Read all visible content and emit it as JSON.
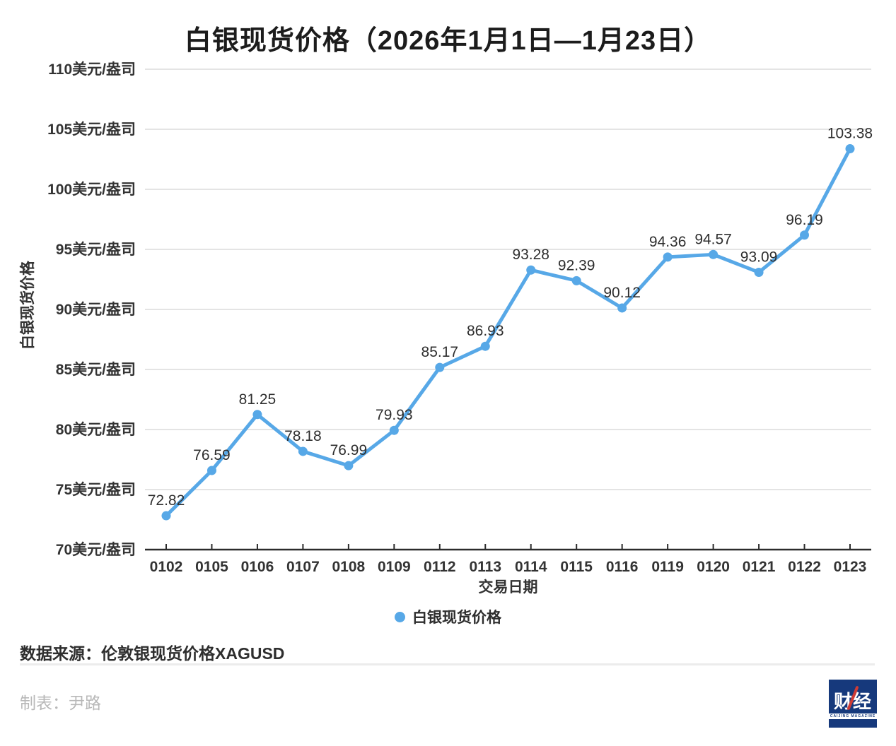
{
  "title": "白银现货价格（2026年1月1日—1月23日）",
  "chart_data": {
    "type": "line",
    "title": "白银现货价格（2026年1月1日—1月23日）",
    "xlabel": "交易日期",
    "ylabel": "白银现货价格",
    "categories": [
      "0102",
      "0105",
      "0106",
      "0107",
      "0108",
      "0109",
      "0112",
      "0113",
      "0114",
      "0115",
      "0116",
      "0119",
      "0120",
      "0121",
      "0122",
      "0123"
    ],
    "series": [
      {
        "name": "白银现货价格",
        "values": [
          72.82,
          76.59,
          81.25,
          78.18,
          76.99,
          79.93,
          85.17,
          86.93,
          93.28,
          92.39,
          90.12,
          94.36,
          94.57,
          93.09,
          96.19,
          103.38
        ]
      }
    ],
    "ylim": [
      70,
      110
    ],
    "ytick_step": 5,
    "ytick_suffix": "美元/盎司",
    "grid": true,
    "legend_position": "bottom",
    "point_labels_shown": true
  },
  "colors": {
    "line": "#57a8e7",
    "grid": "#dcdcdc",
    "axis": "#2b2b2b",
    "tick_text": "#333333",
    "point_label_text": "#2e2e2e",
    "muted_text": "#b8b8b8",
    "logo_bg": "#16397c",
    "logo_accent": "#cf3b35"
  },
  "legend": {
    "label": "白银现货价格"
  },
  "footer": {
    "source": "数据来源：伦敦银现货价格XAGUSD",
    "credit": "制表：尹路",
    "logo_text": "财经",
    "logo_caption": "CAIJING MAGAZINE"
  }
}
